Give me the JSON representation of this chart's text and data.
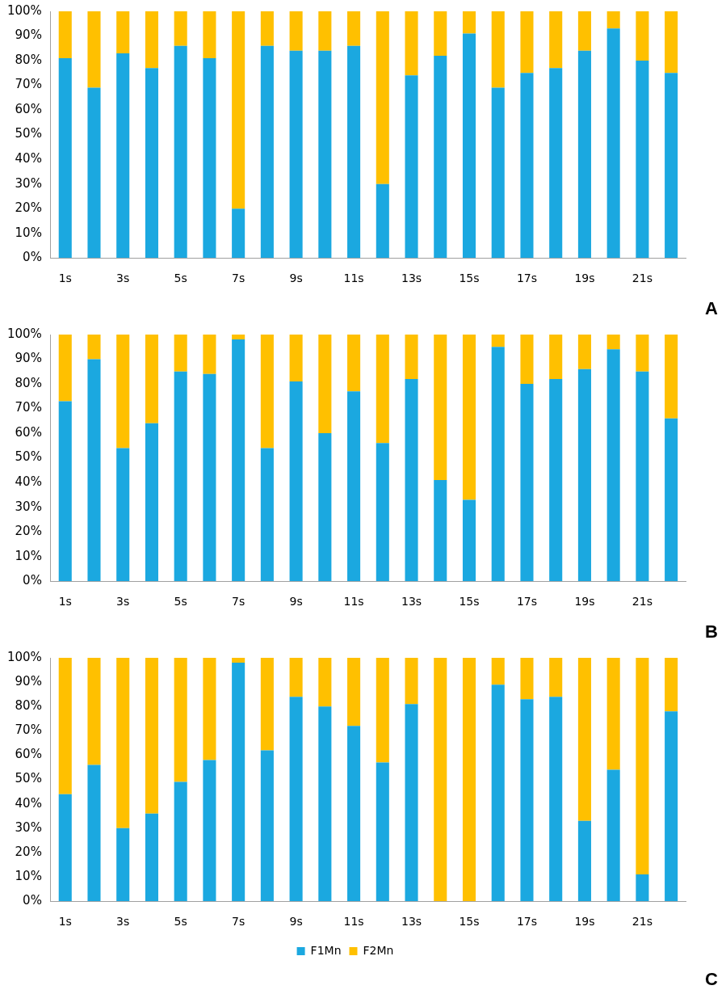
{
  "chart_data": [
    {
      "type": "bar",
      "stacked": true,
      "categories": [
        "1s",
        null,
        "3s",
        null,
        "5s",
        null,
        "7s",
        null,
        "9s",
        null,
        "11s",
        null,
        "13s",
        null,
        "15s",
        null,
        "17s",
        null,
        "19s",
        null,
        "21s",
        null
      ],
      "series": [
        {
          "color": "#1ba8e0",
          "values": [
            81,
            69,
            83,
            77,
            86,
            81,
            20,
            86,
            84,
            84,
            86,
            30,
            74,
            82,
            91,
            69,
            75,
            77,
            84,
            93,
            80,
            75
          ]
        },
        {
          "color": "#ffc000",
          "values": [
            19,
            31,
            17,
            23,
            14,
            19,
            80,
            14,
            16,
            16,
            14,
            70,
            26,
            18,
            9,
            31,
            25,
            23,
            16,
            7,
            20,
            25
          ]
        }
      ],
      "ylim": [
        0,
        100
      ],
      "yticks": [
        {
          "value": 0,
          "label": "0%"
        },
        {
          "value": 10,
          "label": "10%"
        },
        {
          "value": 20,
          "label": "20%"
        },
        {
          "value": 30,
          "label": "30%"
        },
        {
          "value": 40,
          "label": "40%"
        },
        {
          "value": 50,
          "label": "50%"
        },
        {
          "value": 60,
          "label": "60%"
        },
        {
          "value": 70,
          "label": "70%"
        },
        {
          "value": 80,
          "label": "80%"
        },
        {
          "value": 90,
          "label": "90%"
        },
        {
          "value": 100,
          "label": "100%"
        }
      ],
      "grid": false,
      "legend": false,
      "annotations": [
        "A"
      ]
    },
    {
      "type": "bar",
      "stacked": true,
      "categories": [
        "1s",
        null,
        "3s",
        null,
        "5s",
        null,
        "7s",
        null,
        "9s",
        null,
        "11s",
        null,
        "13s",
        null,
        "15s",
        null,
        "17s",
        null,
        "19s",
        null,
        "21s",
        null
      ],
      "series": [
        {
          "color": "#1ba8e0",
          "values": [
            73,
            90,
            54,
            64,
            85,
            84,
            98,
            54,
            81,
            60,
            77,
            56,
            82,
            41,
            33,
            95,
            80,
            82,
            86,
            94,
            85,
            66
          ]
        },
        {
          "color": "#ffc000",
          "values": [
            27,
            10,
            46,
            36,
            15,
            16,
            2,
            46,
            19,
            40,
            23,
            44,
            18,
            59,
            67,
            5,
            20,
            18,
            14,
            6,
            15,
            34
          ]
        }
      ],
      "ylim": [
        0,
        100
      ],
      "yticks": [
        {
          "value": 0,
          "label": "0%"
        },
        {
          "value": 10,
          "label": "10%"
        },
        {
          "value": 20,
          "label": "20%"
        },
        {
          "value": 30,
          "label": "30%"
        },
        {
          "value": 40,
          "label": "40%"
        },
        {
          "value": 50,
          "label": "50%"
        },
        {
          "value": 60,
          "label": "60%"
        },
        {
          "value": 70,
          "label": "70%"
        },
        {
          "value": 80,
          "label": "80%"
        },
        {
          "value": 90,
          "label": "90%"
        },
        {
          "value": 100,
          "label": "100%"
        }
      ],
      "grid": false,
      "legend": false,
      "annotations": [
        "B"
      ]
    },
    {
      "type": "bar",
      "stacked": true,
      "categories": [
        "1s",
        null,
        "3s",
        null,
        "5s",
        null,
        "7s",
        null,
        "9s",
        null,
        "11s",
        null,
        "13s",
        null,
        "15s",
        null,
        "17s",
        null,
        "19s",
        null,
        "21s",
        null
      ],
      "series": [
        {
          "name": "F1Mn",
          "color": "#1ba8e0",
          "values": [
            44,
            56,
            30,
            36,
            49,
            58,
            98,
            62,
            84,
            80,
            72,
            57,
            81,
            0,
            0,
            89,
            83,
            84,
            33,
            54,
            11,
            78
          ]
        },
        {
          "name": "F2Mn",
          "color": "#ffc000",
          "values": [
            56,
            44,
            70,
            64,
            51,
            42,
            2,
            38,
            16,
            20,
            28,
            43,
            19,
            100,
            100,
            11,
            17,
            16,
            67,
            46,
            89,
            22
          ]
        }
      ],
      "ylim": [
        0,
        100
      ],
      "yticks": [
        {
          "value": 0,
          "label": "0%"
        },
        {
          "value": 10,
          "label": "10%"
        },
        {
          "value": 20,
          "label": "20%"
        },
        {
          "value": 30,
          "label": "30%"
        },
        {
          "value": 40,
          "label": "40%"
        },
        {
          "value": 50,
          "label": "50%"
        },
        {
          "value": 60,
          "label": "60%"
        },
        {
          "value": 70,
          "label": "70%"
        },
        {
          "value": 80,
          "label": "80%"
        },
        {
          "value": 90,
          "label": "90%"
        },
        {
          "value": 100,
          "label": "100%"
        }
      ],
      "grid": false,
      "legend": "bottom",
      "annotations": [
        "C"
      ]
    }
  ]
}
